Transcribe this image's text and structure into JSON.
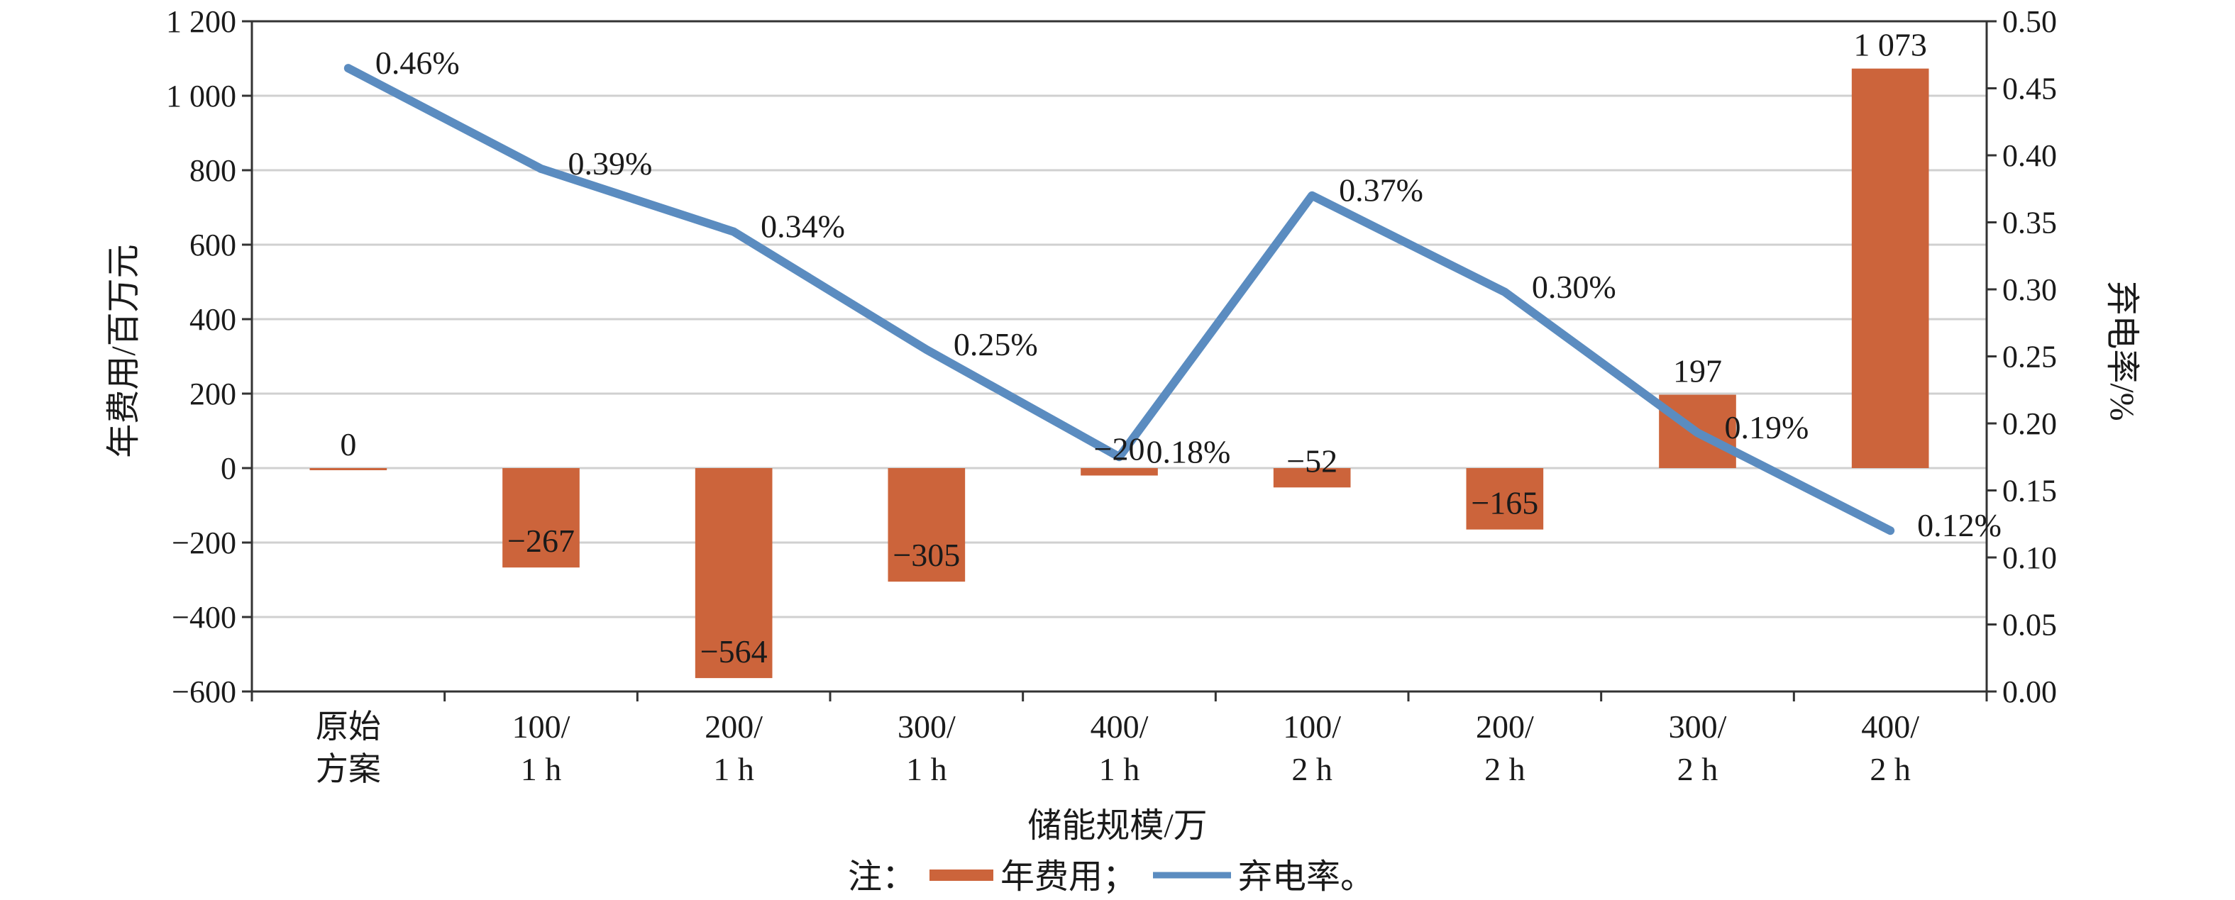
{
  "chart_data": {
    "type": "bar+line",
    "categories": [
      [
        "原始",
        "方案"
      ],
      [
        "100/",
        "1 h"
      ],
      [
        "200/",
        "1 h"
      ],
      [
        "300/",
        "1 h"
      ],
      [
        "400/",
        "1 h"
      ],
      [
        "100/",
        "2 h"
      ],
      [
        "200/",
        "2 h"
      ],
      [
        "300/",
        "2 h"
      ],
      [
        "400/",
        "2 h"
      ]
    ],
    "series": [
      {
        "name": "年费用",
        "type": "bar",
        "axis": "left",
        "color": "#CC643B",
        "values": [
          0,
          -267,
          -564,
          -305,
          -20,
          -52,
          -165,
          197,
          1073
        ],
        "labels": [
          "0",
          "−267",
          "−564",
          "−305",
          "−20",
          "−52",
          "−165",
          "197",
          "1 073"
        ]
      },
      {
        "name": "弃电率",
        "type": "line",
        "axis": "right",
        "color": "#5B8CC0",
        "values": [
          0.465,
          0.39,
          0.343,
          0.255,
          0.175,
          0.37,
          0.298,
          0.193,
          0.12
        ],
        "labels": [
          "0.46%",
          "0.39%",
          "0.34%",
          "0.25%",
          "0.18%",
          "0.37%",
          "0.30%",
          "0.19%",
          "0.12%"
        ]
      }
    ],
    "xlabel": "储能规模/万",
    "ylabel_left": "年费用/百万元",
    "ylabel_right": "弃电率/%",
    "ylim_left": [
      -600,
      1200
    ],
    "yticks_left": [
      "1 200",
      "1 000",
      "800",
      "600",
      "400",
      "200",
      "0",
      "−200",
      "−400",
      "−600"
    ],
    "ylim_right": [
      0,
      0.5
    ],
    "yticks_right": [
      "0.50",
      "0.45",
      "0.40",
      "0.35",
      "0.30",
      "0.25",
      "0.20",
      "0.15",
      "0.10",
      "0.05",
      "0.00"
    ],
    "grid": true,
    "legend": {
      "prefix": "注：",
      "position": "bottom",
      "items": [
        "年费用；",
        "弃电率。"
      ]
    }
  }
}
